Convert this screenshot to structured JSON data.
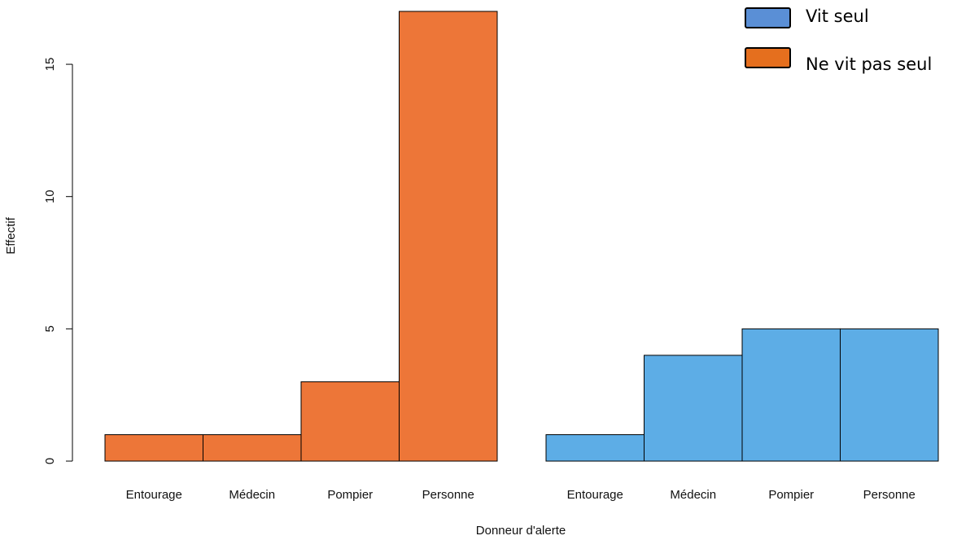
{
  "chart_data": {
    "type": "bar",
    "xlabel": "Donneur d'alerte",
    "ylabel": "Effectif",
    "ylim": [
      0,
      17
    ],
    "yticks": [
      0,
      5,
      10,
      15
    ],
    "grid": false,
    "legend_position": "top-right",
    "colors": {
      "ne_vit_pas_seul": "#ED7638",
      "vit_seul": "#5DADE6",
      "legend_vit_seul": "#5A8FD6",
      "legend_ne_vit_pas_seul": "#E56F1E"
    },
    "groups": [
      {
        "series": "Ne vit pas seul",
        "categories": [
          "Entourage",
          "Médecin",
          "Pompier",
          "Personne"
        ],
        "values": [
          1,
          1,
          3,
          17
        ]
      },
      {
        "series": "Vit seul",
        "categories": [
          "Entourage",
          "Médecin",
          "Pompier",
          "Personne"
        ],
        "values": [
          1,
          4,
          5,
          5
        ]
      }
    ],
    "legend": [
      "Vit seul",
      "Ne vit pas seul"
    ]
  }
}
